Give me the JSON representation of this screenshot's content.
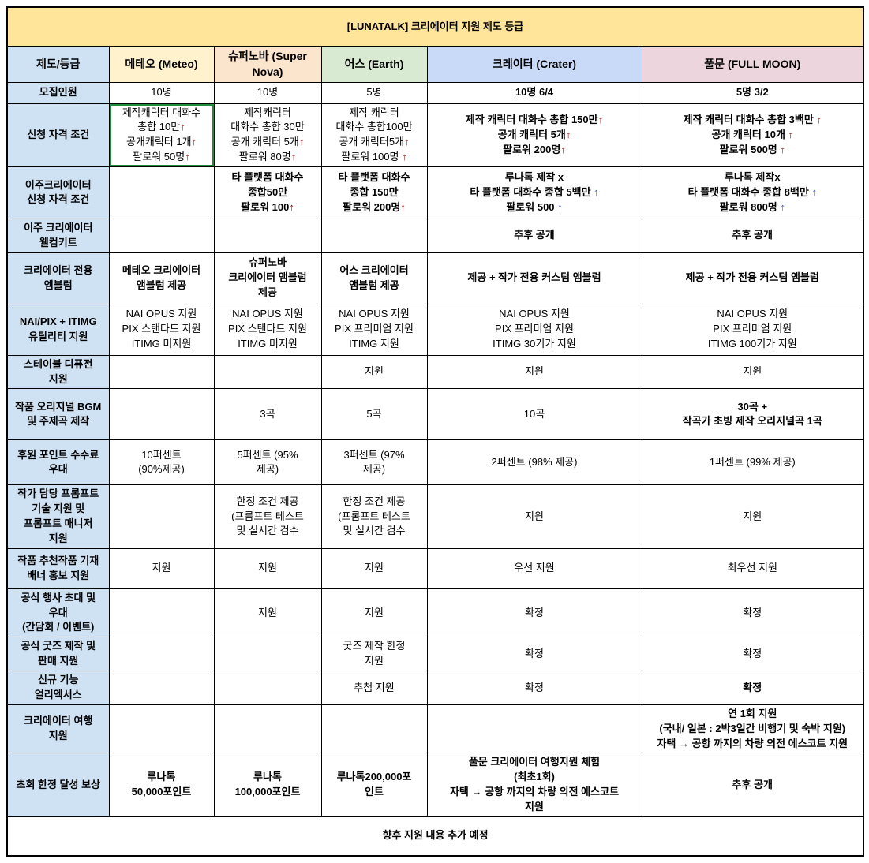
{
  "title": "[LUNATALK] 크리에이터 지원 제도 등급",
  "footer": "향후 지원 내용 추가 예정",
  "colors": {
    "title_bg": "#ffe599",
    "label_bg": "#cfe2f3",
    "selection_green": "#1e8e3e",
    "arrow_red": "#990000",
    "arrow_blue": "#3f5bd5",
    "border": "#000000"
  },
  "columns": [
    {
      "label": "제도/등급",
      "bg": "#cfe2f3"
    },
    {
      "label": "메테오 (Meteo)",
      "bg": "#fff2cc"
    },
    {
      "label": "슈퍼노바 (Super Nova)",
      "bg": "#fce5cd"
    },
    {
      "label": "어스 (Earth)",
      "bg": "#d9ead3"
    },
    {
      "label": "크레이터 (Crater)",
      "bg": "#c9daf8"
    },
    {
      "label": "풀문 (FULL MOON)",
      "bg": "#ecd5dc"
    }
  ],
  "rows": [
    {
      "label": "모집인원",
      "cells": [
        {
          "text": "10명"
        },
        {
          "text": "10명"
        },
        {
          "text": "5명"
        },
        {
          "text": "10명 6/4",
          "bold": true
        },
        {
          "text": "5명 3/2",
          "bold": true
        }
      ]
    },
    {
      "label": "신청 자격 조건",
      "cells": [
        {
          "text": "제작캐릭터 대화수\n총합 10만↑\n공개캐릭터 1개↑\n팔로워 50명↑",
          "arrow": "red",
          "selected": true
        },
        {
          "text": "제작캐릭터\n대화수 총합 30만\n공개 캐릭터 5개↑\n팔로워 80명↑",
          "arrow": "red"
        },
        {
          "text": "제작 캐릭터\n대화수 총합100만\n공개 캐릭터5개↑\n팔로워 100명 ↑",
          "arrow": "red"
        },
        {
          "text": "제작 캐릭터 대화수 총합 150만↑\n공개 캐릭터 5개↑\n팔로워 200명↑",
          "bold": true,
          "arrow": "red"
        },
        {
          "text": "제작 캐릭터 대화수 총합 3백만 ↑\n공개 캐릭터 10개 ↑\n팔로워 500명 ↑",
          "bold": true,
          "arrow": "red"
        }
      ]
    },
    {
      "label": "이주크리에이터\n신청 자격 조건",
      "cells": [
        {
          "text": ""
        },
        {
          "text": "타 플랫폼 대화수\n종합50만\n팔로워 100↑",
          "bold": true,
          "arrow": "red"
        },
        {
          "text": "타 플랫폼 대화수\n종합 150만\n팔로워 200명↑",
          "bold": true,
          "arrow": "red"
        },
        {
          "text": "루나톡 제작 x\n타 플랫폼 대화수 종합 5백만 ↑\n팔로워 500 ↑",
          "bold": true,
          "arrow": "blue"
        },
        {
          "text": "루나톡 제작x\n타 플랫폼 대화수 종합 8백만 ↑\n팔로워 800명 ↑",
          "bold": true,
          "arrow": "blue"
        }
      ]
    },
    {
      "label": "이주 크리에이터\n웰컴키트",
      "cells": [
        {
          "text": ""
        },
        {
          "text": ""
        },
        {
          "text": ""
        },
        {
          "text": "추후 공개",
          "bold": true
        },
        {
          "text": "추후 공개",
          "bold": true
        }
      ]
    },
    {
      "label": "크리에이터 전용\n엠블럼",
      "cells": [
        {
          "text": "메테오 크리에이터\n앰블럼 제공",
          "bold": true
        },
        {
          "text": "슈퍼노바\n크리에이터 앰블럼\n제공",
          "bold": true
        },
        {
          "text": "어스 크리에이터\n앰블럼 제공",
          "bold": true
        },
        {
          "text": "제공 + 작가 전용 커스텀 앰블럼",
          "bold": true
        },
        {
          "text": "제공 + 작가 전용 커스텀 앰블럼",
          "bold": true
        }
      ]
    },
    {
      "label": "NAI/PIX + ITIMG\n유틸리티 지원",
      "cells": [
        {
          "text": "NAI OPUS 지원\nPIX 스탠다드 지원\nITIMG 미지원"
        },
        {
          "text": "NAI OPUS 지원\nPIX 스탠다드 지원\nITIMG 미지원"
        },
        {
          "text": "NAI OPUS 지원\nPIX 프리미엄 지원\nITIMG 지원"
        },
        {
          "text": "NAI OPUS 지원\nPIX 프리미엄 지원\nITIMG  30기가 지원"
        },
        {
          "text": "NAI OPUS 지원\nPIX 프리미엄 지원\nITIMG 100기가 지원"
        }
      ]
    },
    {
      "label": "스테이블 디퓨전\n지원",
      "cells": [
        {
          "text": ""
        },
        {
          "text": ""
        },
        {
          "text": "지원"
        },
        {
          "text": "지원"
        },
        {
          "text": "지원"
        }
      ]
    },
    {
      "label": "작품 오리지널 BGM\n및 주제곡 제작",
      "cells": [
        {
          "text": ""
        },
        {
          "text": "3곡"
        },
        {
          "text": "5곡"
        },
        {
          "text": "10곡"
        },
        {
          "text": "30곡 +\n작곡가 초빙 제작 오리지널곡 1곡",
          "bold": true
        }
      ]
    },
    {
      "label": "후원 포인트 수수료\n우대",
      "cells": [
        {
          "text": "10퍼센트\n(90%제공)"
        },
        {
          "text": "5퍼센트 (95%\n제공)"
        },
        {
          "text": "3퍼센트 (97%\n제공)"
        },
        {
          "text": "2퍼센트 (98% 제공)"
        },
        {
          "text": "1퍼센트  (99% 제공)"
        }
      ]
    },
    {
      "label": "작가 담당 프롬프트\n기술 지원 및\n프롬프트 매니저\n지원",
      "cells": [
        {
          "text": ""
        },
        {
          "text": "한정 조건 제공\n(프롬프트 테스트\n및 실시간 검수"
        },
        {
          "text": "한정 조건 제공\n(프롬프트 테스트\n및 실시간 검수"
        },
        {
          "text": "지원"
        },
        {
          "text": "지원"
        }
      ]
    },
    {
      "label": "작품 추천작품 기재\n배너 홍보 지원",
      "cells": [
        {
          "text": "지원"
        },
        {
          "text": "지원"
        },
        {
          "text": "지원"
        },
        {
          "text": "우선 지원"
        },
        {
          "text": "최우선 지원"
        }
      ]
    },
    {
      "label": "공식 행사 초대 및\n우대\n(간담회 / 이벤트)",
      "cells": [
        {
          "text": ""
        },
        {
          "text": "지원"
        },
        {
          "text": "지원"
        },
        {
          "text": "확정"
        },
        {
          "text": "확정"
        }
      ]
    },
    {
      "label": "공식 굿즈 제작 및\n판매 지원",
      "cells": [
        {
          "text": ""
        },
        {
          "text": ""
        },
        {
          "text": "굿즈 제작 한정\n지원"
        },
        {
          "text": "확정"
        },
        {
          "text": "확정"
        }
      ]
    },
    {
      "label": "신규 기능\n얼리엑서스",
      "cells": [
        {
          "text": ""
        },
        {
          "text": ""
        },
        {
          "text": "추첨 지원"
        },
        {
          "text": "확정"
        },
        {
          "text": "확정",
          "bold": true
        }
      ]
    },
    {
      "label": "크리에이터 여행\n지원",
      "cells": [
        {
          "text": ""
        },
        {
          "text": ""
        },
        {
          "text": ""
        },
        {
          "text": ""
        },
        {
          "text": "연 1회 지원\n(국내/ 일본 : 2박3일간 비행기 및 숙박 지원)\n자택 → 공항 까지의 차량 의전 에스코트 지원",
          "bold": true,
          "small": true
        }
      ]
    },
    {
      "label": "초회 한정 달성 보상",
      "cells": [
        {
          "text": "루나톡\n50,000포인트",
          "bold": true
        },
        {
          "text": "루나톡\n100,000포인트",
          "bold": true
        },
        {
          "text": "루나톡200,000포\n인트",
          "bold": true
        },
        {
          "text": "풀문 크리에이터 여행지원 체험\n(최초1회)\n자택 → 공항 까지의 차량 의전 에스코트\n지원",
          "bold": true,
          "small": true
        },
        {
          "text": "추후 공개",
          "bold": true
        }
      ]
    }
  ]
}
